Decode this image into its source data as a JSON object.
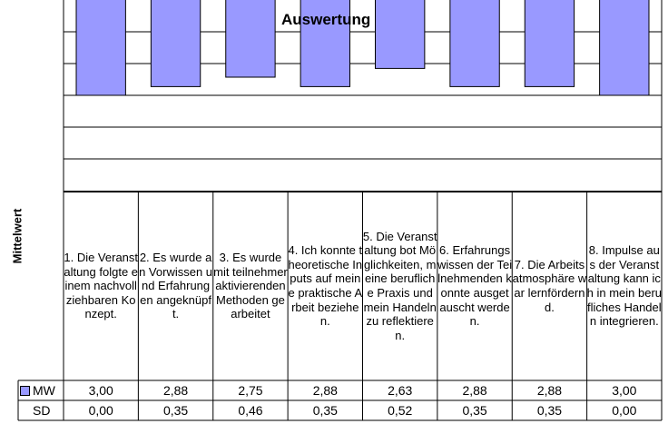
{
  "chart_data": {
    "type": "bar",
    "title": "Auswertung",
    "ylabel": "Mittelwert",
    "bar_color": "#9999ff",
    "ylim": [
      0,
      3.0
    ],
    "categories": [
      "1. Die Veranstaltung folgte einem nachvollziehbaren Konzept.",
      "2. Es wurde an Vorwissen und Erfahrungen angeknüpft.",
      "3. Es wurde mit teilnehmeraktivierenden Methoden gearbeitet",
      "4. Ich konnte theoretische Inputs auf meine praktische Arbeit beziehen.",
      "5. Die Veranstaltung bot Möglichkeiten, meine berufliche Praxis und mein Handeln zu reflektieren.",
      "6. Erfahrungswissen der Teilnehmenden konnte ausgetauscht werden.",
      "7. Die Arbeitsatmosphäre war lernfördernd.",
      "8. Impulse aus der Veranstaltung kann ich in mein berufliches Handeln integrieren."
    ],
    "series": [
      {
        "name": "MW",
        "values": [
          3.0,
          2.88,
          2.75,
          2.88,
          2.63,
          2.88,
          2.88,
          3.0
        ]
      }
    ],
    "table": {
      "rows": [
        {
          "label": "MW",
          "values": [
            "3,00",
            "2,88",
            "2,75",
            "2,88",
            "2,63",
            "2,88",
            "2,88",
            "3,00"
          ]
        },
        {
          "label": "SD",
          "values": [
            "0,00",
            "0,35",
            "0,46",
            "0,35",
            "0,52",
            "0,35",
            "0,35",
            "0,00"
          ]
        }
      ]
    }
  }
}
